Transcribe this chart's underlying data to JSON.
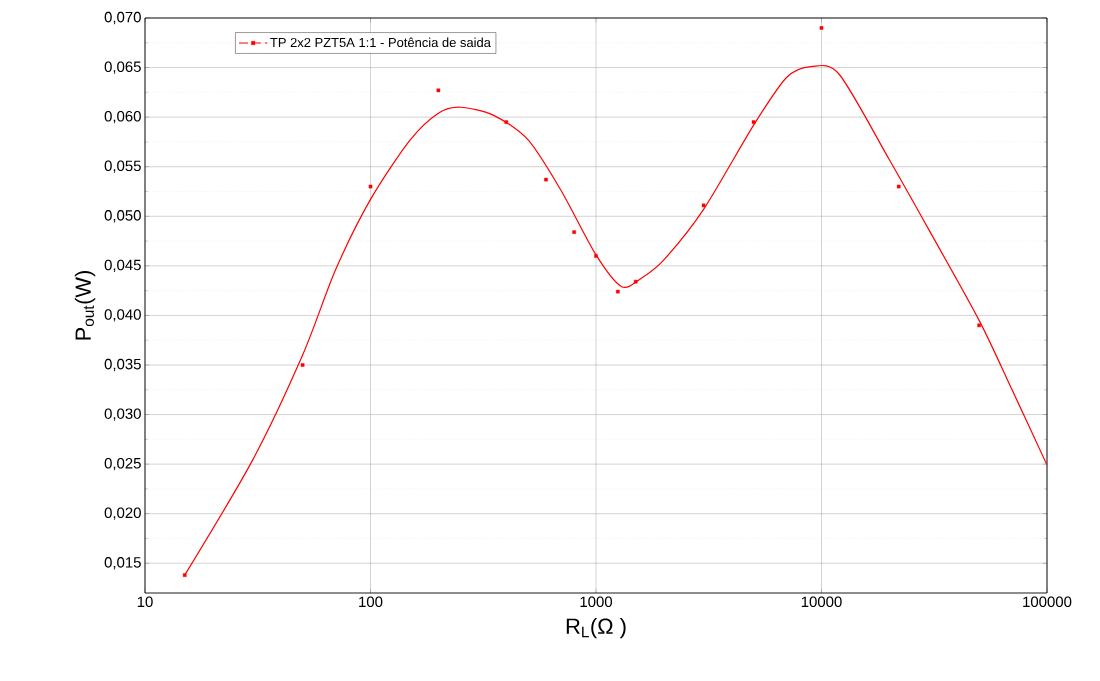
{
  "chart_data": {
    "type": "scatter",
    "xlabel": "R$_{L}$(Ω )",
    "ylabel": "P$_{out}$(W)",
    "log": "x",
    "grid": true,
    "legend": "top left",
    "marker": "square",
    "xlim": [
      10,
      100000
    ],
    "ylim": [
      0.012,
      0.07
    ],
    "xticks": [
      10,
      100,
      1000,
      10000,
      100000
    ],
    "yticks": [
      {
        "value": 0.015,
        "label": "0,015"
      },
      {
        "value": 0.02,
        "label": "0,020"
      },
      {
        "value": 0.025,
        "label": "0,025"
      },
      {
        "value": 0.03,
        "label": "0,030"
      },
      {
        "value": 0.035,
        "label": "0,035"
      },
      {
        "value": 0.04,
        "label": "0,040"
      },
      {
        "value": 0.045,
        "label": "0,045"
      },
      {
        "value": 0.05,
        "label": "0,050"
      },
      {
        "value": 0.055,
        "label": "0,055"
      },
      {
        "value": 0.06,
        "label": "0,060"
      },
      {
        "value": 0.065,
        "label": "0,065"
      },
      {
        "value": 0.07,
        "label": "0,070"
      }
    ],
    "series": [
      {
        "name": "TP 2x2 PZT5A 1:1  - Potência de saida",
        "color": "#ff0000",
        "x": [
          15,
          50,
          100,
          200,
          400,
          600,
          800,
          1000,
          1250,
          1500,
          3000,
          5000,
          10000,
          22000,
          50000
        ],
        "values": [
          0.0138,
          0.035,
          0.053,
          0.0627,
          0.0595,
          0.0537,
          0.0484,
          0.046,
          0.0424,
          0.0434,
          0.0511,
          0.0595,
          0.069,
          0.053,
          0.039
        ]
      },
      {
        "type": "line",
        "color": "#ff0000",
        "line_style": "solid",
        "marker": "none",
        "x": [
          15,
          30,
          50,
          70,
          100,
          150,
          200,
          250,
          350,
          500,
          700,
          1000,
          1300,
          1600,
          2000,
          3000,
          5000,
          7000,
          9000,
          12000,
          20000,
          30000,
          50000,
          70000,
          100000
        ],
        "values": [
          0.0138,
          0.0254,
          0.036,
          0.0446,
          0.0517,
          0.0577,
          0.0604,
          0.061,
          0.0602,
          0.0577,
          0.0526,
          0.0461,
          0.0429,
          0.0438,
          0.0456,
          0.0507,
          0.0592,
          0.064,
          0.0651,
          0.0643,
          0.0557,
          0.0486,
          0.0395,
          0.0325,
          0.0249
        ]
      }
    ]
  }
}
